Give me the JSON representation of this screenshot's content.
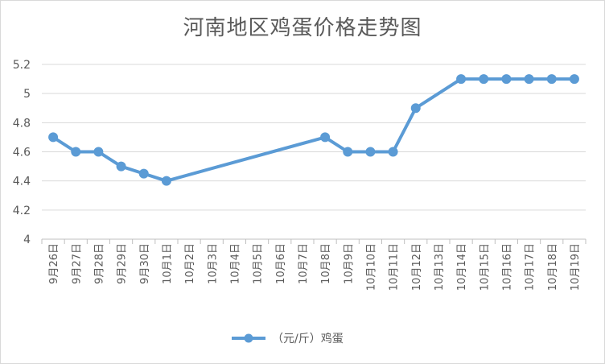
{
  "chart_data": {
    "type": "line",
    "title": "河南地区鸡蛋价格走势图",
    "xlabel": "",
    "ylabel": "",
    "categories": [
      "9月26日",
      "9月27日",
      "9月28日",
      "9月29日",
      "9月30日",
      "10月1日",
      "10月2日",
      "10月3日",
      "10月4日",
      "10月5日",
      "10月6日",
      "10月7日",
      "10月8日",
      "10月9日",
      "10月10日",
      "10月11日",
      "10月12日",
      "10月13日",
      "10月14日",
      "10月15日",
      "10月16日",
      "10月17日",
      "10月18日",
      "10月19日"
    ],
    "ylim": [
      4,
      5.2
    ],
    "yticks": [
      "5.2",
      "5",
      "4.8",
      "4.6",
      "4.4",
      "4.2",
      "4"
    ],
    "ytick_values": [
      5.2,
      5.0,
      4.8,
      4.6,
      4.4,
      4.2,
      4.0
    ],
    "grid": true,
    "legend_position": "bottom",
    "series": [
      {
        "name": "（元/斤）鸡蛋",
        "color": "#5b9bd5",
        "points": [
          {
            "x": "9月26日",
            "y": 4.7
          },
          {
            "x": "9月27日",
            "y": 4.6
          },
          {
            "x": "9月28日",
            "y": 4.6
          },
          {
            "x": "9月29日",
            "y": 4.5
          },
          {
            "x": "9月30日",
            "y": 4.45
          },
          {
            "x": "10月1日",
            "y": 4.4
          },
          {
            "x": "10月8日",
            "y": 4.7
          },
          {
            "x": "10月9日",
            "y": 4.6
          },
          {
            "x": "10月10日",
            "y": 4.6
          },
          {
            "x": "10月11日",
            "y": 4.6
          },
          {
            "x": "10月12日",
            "y": 4.9
          },
          {
            "x": "10月14日",
            "y": 5.1
          },
          {
            "x": "10月15日",
            "y": 5.1
          },
          {
            "x": "10月16日",
            "y": 5.1
          },
          {
            "x": "10月17日",
            "y": 5.1
          },
          {
            "x": "10月18日",
            "y": 5.1
          },
          {
            "x": "10月19日",
            "y": 5.1
          }
        ]
      }
    ]
  }
}
